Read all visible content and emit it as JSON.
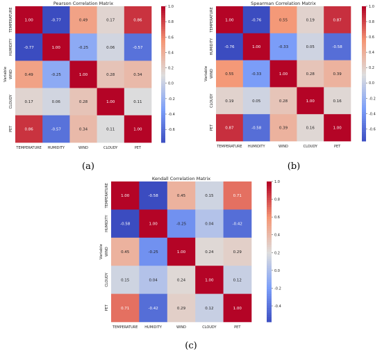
{
  "chart_data": [
    {
      "type": "heatmap",
      "panel_label": "(a)",
      "title": "Pearson Correlation Matrix",
      "ylabel": "Variable",
      "categories": [
        "TEMPERATURE",
        "HUMIDITY",
        "WIND",
        "CLOUDY",
        "PET"
      ],
      "values": [
        [
          1.0,
          -0.77,
          0.49,
          0.17,
          0.86
        ],
        [
          -0.77,
          1.0,
          -0.25,
          0.06,
          -0.57
        ],
        [
          0.49,
          -0.25,
          1.0,
          0.28,
          0.34
        ],
        [
          0.17,
          0.06,
          0.28,
          1.0,
          0.11
        ],
        [
          0.86,
          -0.57,
          0.34,
          0.11,
          1.0
        ]
      ],
      "colorbar_ticks": [
        "1.0",
        "0.8",
        "0.6",
        "0.4",
        "0.2",
        "0.0",
        "-0.2",
        "-0.4",
        "-0.6"
      ],
      "colorbar_tick_values": [
        1.0,
        0.8,
        0.6,
        0.4,
        0.2,
        0.0,
        -0.2,
        -0.4,
        -0.6
      ],
      "colorbar_range": [
        -0.77,
        1.0
      ]
    },
    {
      "type": "heatmap",
      "panel_label": "(b)",
      "title": "Spearman Correlation Matrix",
      "ylabel": "Variable",
      "categories": [
        "TEMPERATURE",
        "HUMIDITY",
        "WIND",
        "CLOUDY",
        "PET"
      ],
      "values": [
        [
          1.0,
          -0.76,
          0.55,
          0.19,
          0.87
        ],
        [
          -0.76,
          1.0,
          -0.33,
          0.05,
          -0.58
        ],
        [
          0.55,
          -0.33,
          1.0,
          0.28,
          0.39
        ],
        [
          0.19,
          0.05,
          0.28,
          1.0,
          0.16
        ],
        [
          0.87,
          -0.58,
          0.39,
          0.16,
          1.0
        ]
      ],
      "colorbar_ticks": [
        "1.0",
        "0.8",
        "0.6",
        "0.4",
        "0.2",
        "0.0",
        "-0.2",
        "-0.4",
        "-0.6"
      ],
      "colorbar_tick_values": [
        1.0,
        0.8,
        0.6,
        0.4,
        0.2,
        0.0,
        -0.2,
        -0.4,
        -0.6
      ],
      "colorbar_range": [
        -0.76,
        1.0
      ]
    },
    {
      "type": "heatmap",
      "panel_label": "(c)",
      "title": "Kendall Correlation Matrix",
      "ylabel": "Variable",
      "categories": [
        "TEMPERATURE",
        "HUMIDITY",
        "WIND",
        "CLOUDY",
        "PET"
      ],
      "values": [
        [
          1.0,
          -0.58,
          0.45,
          0.15,
          0.71
        ],
        [
          -0.58,
          1.0,
          -0.25,
          0.04,
          -0.42
        ],
        [
          0.45,
          -0.25,
          1.0,
          0.24,
          0.29
        ],
        [
          0.15,
          0.04,
          0.24,
          1.0,
          0.12
        ],
        [
          0.71,
          -0.42,
          0.29,
          0.12,
          1.0
        ]
      ],
      "colorbar_ticks": [
        "1.0",
        "0.8",
        "0.6",
        "0.4",
        "0.2",
        "0.0",
        "-0.2",
        "-0.4"
      ],
      "colorbar_tick_values": [
        1.0,
        0.8,
        0.6,
        0.4,
        0.2,
        0.0,
        -0.2,
        -0.4
      ],
      "colorbar_range": [
        -0.58,
        1.0
      ]
    }
  ]
}
